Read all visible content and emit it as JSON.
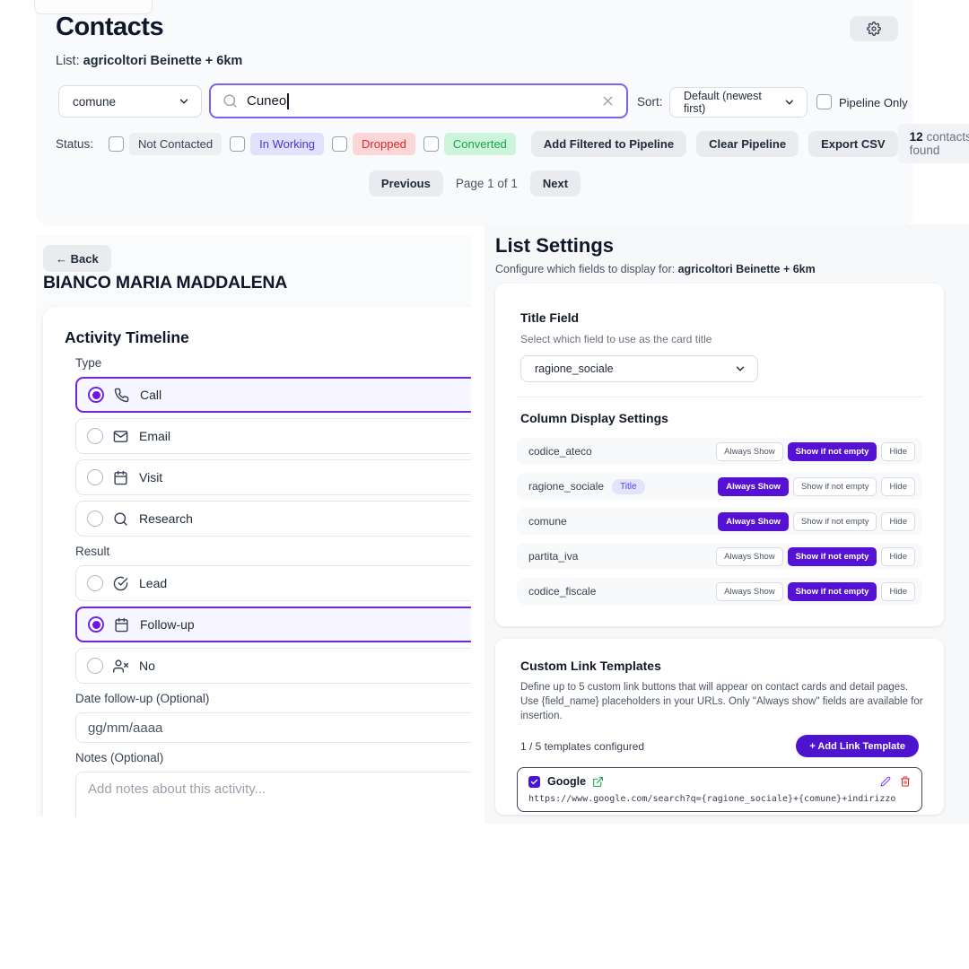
{
  "colors": {
    "accent_purple": "#5512d4",
    "selected_border": "#6d28d9",
    "search_border": "#7e61f3",
    "add_button": "#4e13cf"
  },
  "contacts": {
    "title": "Contacts",
    "list_label": "List:",
    "list_name": "agricoltori Beinette + 6km",
    "field_select": "comune",
    "search_value": "Cuneo",
    "sort_label": "Sort:",
    "sort_value": "Default (newest first)",
    "pipeline_only": "Pipeline Only",
    "status_label": "Status:",
    "statuses": [
      {
        "label": "Not Contacted",
        "bg": "#edeff2",
        "color": "#374151"
      },
      {
        "label": "In Working",
        "bg": "#e2e1fd",
        "color": "#4338ca"
      },
      {
        "label": "Dropped",
        "bg": "#fdd7d7",
        "color": "#dc2626"
      },
      {
        "label": "Converted",
        "bg": "#cdf5dc",
        "color": "#16a34a"
      }
    ],
    "actions": [
      "Add Filtered to Pipeline",
      "Clear Pipeline",
      "Export CSV"
    ],
    "results_count": "12",
    "results_suffix": "contacts found",
    "pagination": {
      "prev": "Previous",
      "page": "Page 1 of 1",
      "next": "Next"
    }
  },
  "detail": {
    "back": "← Back",
    "name": "BIANCO MARIA MADDALENA",
    "card_title": "Activity Timeline",
    "type_label": "Type",
    "type_options": [
      {
        "label": "Call",
        "icon": "phone",
        "selected": true
      },
      {
        "label": "Email",
        "icon": "mail",
        "selected": false
      },
      {
        "label": "Visit",
        "icon": "calendar",
        "selected": false
      },
      {
        "label": "Research",
        "icon": "search",
        "selected": false
      }
    ],
    "result_label": "Result",
    "result_options": [
      {
        "label": "Lead",
        "icon": "check-circle",
        "selected": false
      },
      {
        "label": "Follow-up",
        "icon": "calendar",
        "selected": true
      },
      {
        "label": "No",
        "icon": "user-x",
        "selected": false
      }
    ],
    "date_label": "Date follow-up (Optional)",
    "date_placeholder": "gg/mm/aaaa",
    "notes_label": "Notes (Optional)",
    "notes_placeholder": "Add notes about this activity..."
  },
  "settings": {
    "title": "List Settings",
    "subtitle_prefix": "Configure which fields to display for: ",
    "subtitle_name": "agricoltori Beinette + 6km",
    "title_field": {
      "heading": "Title Field",
      "description": "Select which field to use as the card title",
      "value": "ragione_sociale"
    },
    "columns": {
      "heading": "Column Display Settings",
      "modes": [
        "Always Show",
        "Show if not empty",
        "Hide"
      ],
      "rows": [
        {
          "field": "codice_ateco",
          "active": "Show if not empty",
          "title_badge": false,
          "badge": ""
        },
        {
          "field": "ragione_sociale",
          "active": "Always Show",
          "title_badge": true,
          "badge": "Title"
        },
        {
          "field": "comune",
          "active": "Always Show",
          "title_badge": false,
          "badge": ""
        },
        {
          "field": "partita_iva",
          "active": "Show if not empty",
          "title_badge": false,
          "badge": ""
        },
        {
          "field": "codice_fiscale",
          "active": "Show if not empty",
          "title_badge": false,
          "badge": ""
        }
      ]
    },
    "links": {
      "heading": "Custom Link Templates",
      "description": "Define up to 5 custom link buttons that will appear on contact cards and detail pages. Use {field_name} placeholders in your URLs. Only \"Always show\" fields are available for insertion.",
      "count": "1 / 5 templates configured",
      "add_button": "+  Add Link Template",
      "template": {
        "name": "Google",
        "url": "https://www.google.com/search?q={ragione_sociale}+{comune}+indirizzo"
      }
    }
  }
}
